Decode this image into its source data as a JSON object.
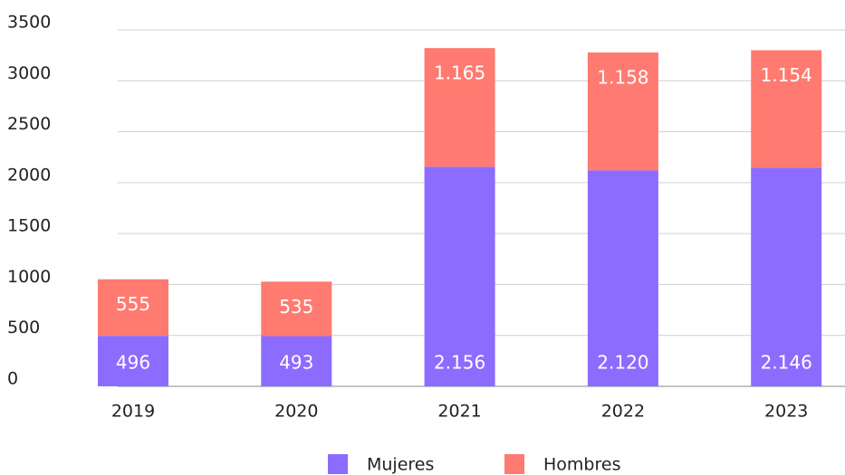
{
  "chart_data": {
    "type": "stacked_bar",
    "categories": [
      "2019",
      "2020",
      "2021",
      "2022",
      "2023"
    ],
    "series": [
      {
        "name": "Mujeres",
        "color": "#8c6cff",
        "values": [
          496,
          493,
          2156,
          2120,
          2146
        ],
        "value_labels": [
          "496",
          "493",
          "2.156",
          "2.120",
          "2.146"
        ]
      },
      {
        "name": "Hombres",
        "color": "#ff7a70",
        "values": [
          555,
          535,
          1165,
          1158,
          1154
        ],
        "value_labels": [
          "555",
          "535",
          "1.165",
          "1.158",
          "1.154"
        ]
      }
    ],
    "ylim": [
      0,
      3500
    ],
    "yticks": [
      0,
      500,
      1000,
      1500,
      2000,
      2500,
      3000,
      3500
    ],
    "grid": true,
    "legend": "bottom"
  }
}
